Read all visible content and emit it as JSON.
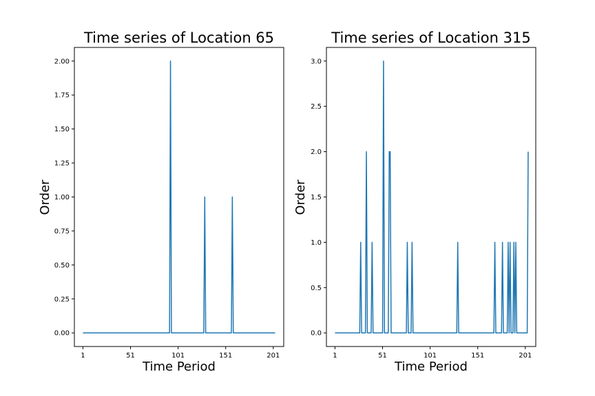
{
  "chart_data": [
    {
      "type": "line",
      "title": "Time series of Location 65",
      "xlabel": "Time Period",
      "ylabel": "Order",
      "xticks": [
        1,
        51,
        101,
        151,
        201
      ],
      "yticks": [
        "0.00",
        "0.25",
        "0.50",
        "0.75",
        "1.00",
        "1.25",
        "1.50",
        "1.75",
        "2.00"
      ],
      "xlim": [
        -8,
        212
      ],
      "ylim": [
        -0.1,
        2.1
      ],
      "grid": false,
      "color": "#1f77b4",
      "series": [
        {
          "values": [
            [
              1,
              0
            ],
            [
              92,
              0
            ],
            [
              93,
              2
            ],
            [
              94,
              0
            ],
            [
              128,
              0
            ],
            [
              129,
              1
            ],
            [
              130,
              0
            ],
            [
              157,
              0
            ],
            [
              158,
              1
            ],
            [
              159,
              0
            ],
            [
              203,
              0
            ]
          ]
        }
      ]
    },
    {
      "type": "line",
      "title": "Time series of Location 315",
      "xlabel": "Time Period",
      "ylabel": "Order",
      "xticks": [
        1,
        51,
        101,
        151,
        201
      ],
      "yticks": [
        "0.0",
        "0.5",
        "1.0",
        "1.5",
        "2.0",
        "2.5",
        "3.0"
      ],
      "xlim": [
        -8,
        212
      ],
      "ylim": [
        -0.15,
        3.15
      ],
      "grid": false,
      "color": "#1f77b4",
      "series": [
        {
          "values": [
            [
              1,
              0
            ],
            [
              27,
              0
            ],
            [
              28,
              1
            ],
            [
              29,
              0
            ],
            [
              33,
              0
            ],
            [
              34,
              2
            ],
            [
              35,
              0
            ],
            [
              39,
              0
            ],
            [
              40,
              1
            ],
            [
              41,
              0
            ],
            [
              51,
              0
            ],
            [
              52,
              3
            ],
            [
              53,
              0
            ],
            [
              57,
              0
            ],
            [
              58,
              2
            ],
            [
              59,
              2
            ],
            [
              60,
              0
            ],
            [
              76,
              0
            ],
            [
              77,
              1
            ],
            [
              78,
              0
            ],
            [
              81,
              0
            ],
            [
              82,
              1
            ],
            [
              83,
              0
            ],
            [
              129,
              0
            ],
            [
              130,
              1
            ],
            [
              131,
              0
            ],
            [
              168,
              0
            ],
            [
              169,
              1
            ],
            [
              170,
              0
            ],
            [
              176,
              0
            ],
            [
              177,
              1
            ],
            [
              178,
              0
            ],
            [
              182,
              0
            ],
            [
              183,
              1
            ],
            [
              184,
              0
            ],
            [
              185,
              1
            ],
            [
              186,
              0
            ],
            [
              188,
              0
            ],
            [
              189,
              1
            ],
            [
              190,
              0
            ],
            [
              191,
              1
            ],
            [
              192,
              0
            ],
            [
              203,
              0
            ],
            [
              204,
              2
            ]
          ]
        }
      ]
    }
  ]
}
